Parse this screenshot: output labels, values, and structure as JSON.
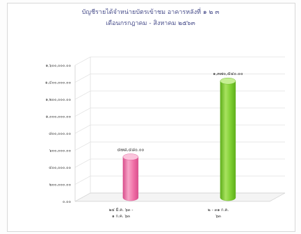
{
  "chart_data": {
    "type": "bar",
    "title": "บัญชีรายได้จำหน่ายบัตรเข้าชม อาคารหลังที่ ๑ ๒ ๓",
    "subtitle": "เดือนกรกฎาคม - สิงหาคม ๒๕๖๓",
    "xlabel": "",
    "ylabel": "",
    "categories": [
      [
        "๒๔ มี.ค. ๖๓ -",
        "๑ ก.ค. ๖๓"
      ],
      [
        "๒ - ๓๑ ก.ค.",
        "๖๓"
      ]
    ],
    "values": [
      478480,
      1370540
    ],
    "data_labels": [
      "๔๗๘,๔๘๐.๐๐",
      "๑,๓๗๐,๕๔๐.๐๐"
    ],
    "ylim": [
      0,
      1600000
    ],
    "y_ticks": [
      0,
      200000,
      400000,
      600000,
      800000,
      1000000,
      1200000,
      1400000,
      1600000
    ],
    "y_tick_labels": [
      "๐.๐๐",
      "๒๐๐,๐๐๐.๐๐",
      "๔๐๐,๐๐๐.๐๐",
      "๖๐๐,๐๐๐.๐๐",
      "๘๐๐,๐๐๐.๐๐",
      "๑,๐๐๐,๐๐๐.๐๐",
      "๑,๒๐๐,๐๐๐.๐๐",
      "๑,๔๐๐,๐๐๐.๐๐",
      "๑,๖๐๐,๐๐๐.๐๐"
    ],
    "grid": true,
    "legend": "none",
    "colors": [
      "#f06fa6",
      "#7ccd2f"
    ]
  }
}
